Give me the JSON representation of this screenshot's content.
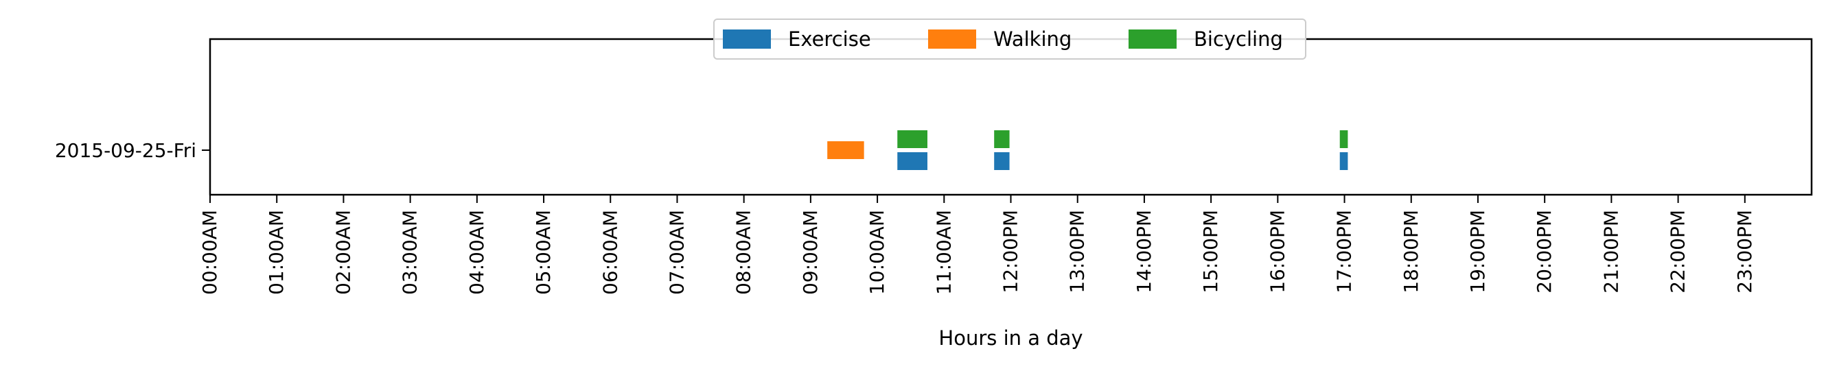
{
  "chart_data": {
    "type": "bar",
    "orientation": "horizontal",
    "title": "",
    "xlabel": "Hours in a day",
    "ylabel": "",
    "categories": [
      "2015-09-25-Fri"
    ],
    "x_ticks": [
      "00:00AM",
      "01:00AM",
      "02:00AM",
      "03:00AM",
      "04:00AM",
      "05:00AM",
      "06:00AM",
      "07:00AM",
      "08:00AM",
      "09:00AM",
      "10:00AM",
      "11:00AM",
      "12:00PM",
      "13:00PM",
      "14:00PM",
      "15:00PM",
      "16:00PM",
      "17:00PM",
      "18:00PM",
      "19:00PM",
      "20:00PM",
      "21:00PM",
      "22:00PM",
      "23:00PM"
    ],
    "xlim": [
      0,
      24
    ],
    "grid": false,
    "legend": {
      "placement": "top-center",
      "entries": [
        "Exercise",
        "Walking",
        "Bicycling"
      ]
    },
    "series": [
      {
        "name": "Exercise",
        "color": "#1f77b4",
        "segments": [
          {
            "category": "2015-09-25-Fri",
            "start": 10.3,
            "end": 10.75
          },
          {
            "category": "2015-09-25-Fri",
            "start": 11.75,
            "end": 11.98
          },
          {
            "category": "2015-09-25-Fri",
            "start": 16.93,
            "end": 17.05
          }
        ]
      },
      {
        "name": "Walking",
        "color": "#ff7f0e",
        "segments": [
          {
            "category": "2015-09-25-Fri",
            "start": 9.25,
            "end": 9.8
          }
        ]
      },
      {
        "name": "Bicycling",
        "color": "#2ca02c",
        "segments": [
          {
            "category": "2015-09-25-Fri",
            "start": 10.3,
            "end": 10.75
          },
          {
            "category": "2015-09-25-Fri",
            "start": 11.75,
            "end": 11.98
          },
          {
            "category": "2015-09-25-Fri",
            "start": 16.93,
            "end": 17.05
          }
        ]
      }
    ]
  }
}
